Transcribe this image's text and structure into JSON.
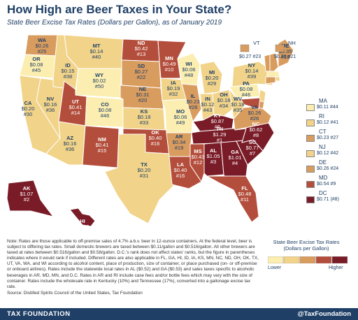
{
  "title": "How High are Beer Taxes in Your State?",
  "subtitle": "State Beer Excise Tax Rates (Dollars per Gallon), as of January 2019",
  "colors": {
    "lowest": "#fbeeb0",
    "low": "#f1d389",
    "mid": "#d99c5f",
    "high": "#b44e3c",
    "highest": "#7a1c28",
    "footer": "#1f3f66"
  },
  "states": [
    {
      "abbr": "WA",
      "rate": "$0.26",
      "rank": "#25",
      "tier": "mid"
    },
    {
      "abbr": "OR",
      "rate": "$0.08",
      "rank": "#45",
      "tier": "lowest"
    },
    {
      "abbr": "CA",
      "rate": "$0.20",
      "rank": "#30",
      "tier": "low"
    },
    {
      "abbr": "NV",
      "rate": "$0.16",
      "rank": "#36",
      "tier": "low"
    },
    {
      "abbr": "ID",
      "rate": "$0.15",
      "rank": "#38",
      "tier": "low"
    },
    {
      "abbr": "MT",
      "rate": "$0.14",
      "rank": "#40",
      "tier": "low"
    },
    {
      "abbr": "WY",
      "rate": "$0.02",
      "rank": "#50",
      "tier": "lowest"
    },
    {
      "abbr": "UT",
      "rate": "$0.41",
      "rank": "#14",
      "tier": "high"
    },
    {
      "abbr": "AZ",
      "rate": "$0.16",
      "rank": "#36",
      "tier": "low"
    },
    {
      "abbr": "CO",
      "rate": "$0.08",
      "rank": "#46",
      "tier": "lowest"
    },
    {
      "abbr": "NM",
      "rate": "$0.41",
      "rank": "#15",
      "tier": "high"
    },
    {
      "abbr": "ND",
      "rate": "$0.42",
      "rank": "#13",
      "tier": "high"
    },
    {
      "abbr": "SD",
      "rate": "$0.27",
      "rank": "#22",
      "tier": "mid"
    },
    {
      "abbr": "NE",
      "rate": "$0.31",
      "rank": "#20",
      "tier": "mid"
    },
    {
      "abbr": "KS",
      "rate": "$0.18",
      "rank": "#33",
      "tier": "low"
    },
    {
      "abbr": "OK",
      "rate": "$0.40",
      "rank": "#16",
      "tier": "high"
    },
    {
      "abbr": "TX",
      "rate": "$0.20",
      "rank": "#31",
      "tier": "low"
    },
    {
      "abbr": "MN",
      "rate": "$0.49",
      "rank": "#10",
      "tier": "high"
    },
    {
      "abbr": "IA",
      "rate": "$0.19",
      "rank": "#32",
      "tier": "low"
    },
    {
      "abbr": "MO",
      "rate": "$0.06",
      "rank": "#49",
      "tier": "lowest"
    },
    {
      "abbr": "AR",
      "rate": "$0.34",
      "rank": "#19",
      "tier": "mid"
    },
    {
      "abbr": "LA",
      "rate": "$0.40",
      "rank": "#16",
      "tier": "high"
    },
    {
      "abbr": "WI",
      "rate": "$0.06",
      "rank": "#48",
      "tier": "lowest"
    },
    {
      "abbr": "IL",
      "rate": "$0.23",
      "rank": "#28",
      "tier": "mid"
    },
    {
      "abbr": "MI",
      "rate": "$0.20",
      "rank": "#29",
      "tier": "low"
    },
    {
      "abbr": "IN",
      "rate": "$0.12",
      "rank": "#43",
      "tier": "low"
    },
    {
      "abbr": "OH",
      "rate": "$0.18",
      "rank": "#34",
      "tier": "low"
    },
    {
      "abbr": "KY",
      "rate": "$0.87",
      "rank": "#6",
      "tier": "highest"
    },
    {
      "abbr": "TN",
      "rate": "$1.29",
      "rank": "#1",
      "tier": "highest"
    },
    {
      "abbr": "MS",
      "rate": "$0.43",
      "rank": "#12",
      "tier": "high"
    },
    {
      "abbr": "AL",
      "rate": "$1.05",
      "rank": "#3",
      "tier": "highest"
    },
    {
      "abbr": "GA",
      "rate": "$1.01",
      "rank": "#4",
      "tier": "highest"
    },
    {
      "abbr": "FL",
      "rate": "$0.48",
      "rank": "#11",
      "tier": "high"
    },
    {
      "abbr": "SC",
      "rate": "$0.77",
      "rank": "#7",
      "tier": "highest"
    },
    {
      "abbr": "NC",
      "rate": "$0.62",
      "rank": "#8",
      "tier": "highest"
    },
    {
      "abbr": "VA",
      "rate": "$0.26",
      "rank": "#26",
      "tier": "mid"
    },
    {
      "abbr": "WV",
      "rate": "$0.18",
      "rank": "#35",
      "tier": "low"
    },
    {
      "abbr": "PA",
      "rate": "$0.08",
      "rank": "#46",
      "tier": "lowest"
    },
    {
      "abbr": "NY",
      "rate": "$0.14",
      "rank": "#39",
      "tier": "low"
    },
    {
      "abbr": "ME",
      "rate": "$0.35",
      "rank": "#18",
      "tier": "mid"
    },
    {
      "abbr": "AK",
      "rate": "$1.07",
      "rank": "#2",
      "tier": "highest"
    },
    {
      "abbr": "HI",
      "rate": "$0.93",
      "rank": "#5",
      "tier": "highest"
    }
  ],
  "vt": {
    "abbr": "VT",
    "value": "$0.27 #23",
    "tier": "mid"
  },
  "nh": {
    "abbr": "NH",
    "value": "$0.30 #21",
    "tier": "mid"
  },
  "sidebar": [
    {
      "abbr": "MA",
      "value": "$0.11 #44",
      "tier": "lowest"
    },
    {
      "abbr": "RI",
      "value": "$0.12 #41",
      "tier": "low"
    },
    {
      "abbr": "CT",
      "value": "$0.23 #27",
      "tier": "mid"
    },
    {
      "abbr": "NJ",
      "value": "$0.12 #42",
      "tier": "low"
    },
    {
      "abbr": "DE",
      "value": "$0.26 #24",
      "tier": "mid"
    },
    {
      "abbr": "MD",
      "value": "$0.54 #9",
      "tier": "high"
    },
    {
      "abbr": "DC",
      "value": "$0.71 (#8)",
      "tier": "highest"
    }
  ],
  "note": "Note: Rates are those applicable to off-premise sales of 4.7% a.b.v. beer in 12-ounce containers. At the federal level, beer is subject to differing tax rates. Small domestic brewers are taxed between $0.11/gallon and $0.516/gallon. All other brewers are taxed at rates between $0.516/gallon and $0.58/gallon. D.C.'s rank does not affect states' ranks, but the figure in parentheses indicates where it would rank if included. Different rates are also applicable in FL, GA, HI, ID, IA, KS, MN, NC, ND, OH, OK, TX, UT, VA, WA, and WI according to alcohol content, place of production, size of container, or place purchased (on- or off-premise or onboard airlines). Rates include the statewide local rates in AL ($0.52) and GA ($0.53) and sales taxes specific to alcoholic beverages in AR, MD, MN, and D.C. Rates in AR and RI include case fees and/or bottle fees which may vary with the size of container. Rates include the wholesale rate in Kentucky (10%) and Tennessee (17%), converted into a gallonage excise tax rate.",
  "source": "Source: Distilled Spirits Council of the United States, Tax Foundation",
  "legend": {
    "title": "State Beer Excise Tax Rates (Dollars per Gallon)",
    "lower": "Lower",
    "higher": "Higher"
  },
  "footer": {
    "left": "TAX FOUNDATION",
    "right": "@TaxFoundation"
  }
}
